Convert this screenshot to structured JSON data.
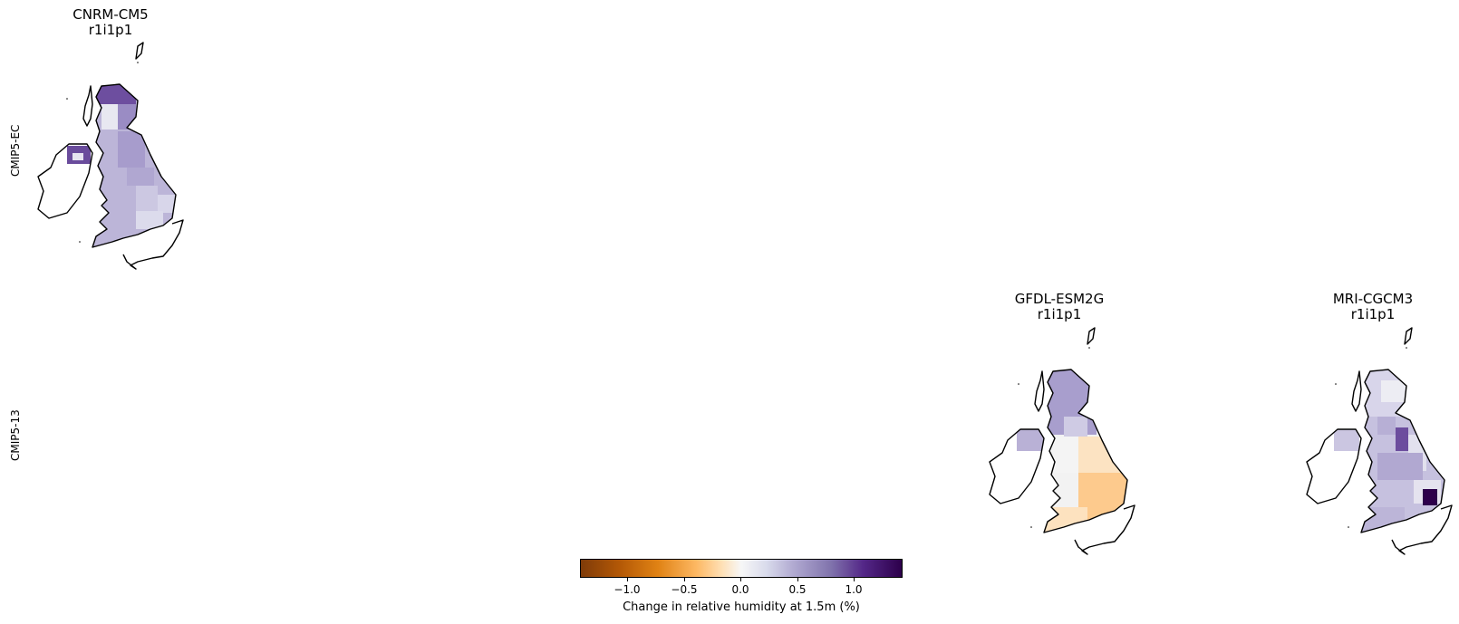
{
  "panels": [
    {
      "model": "CNRM-CM5",
      "run": "r1i1p1"
    },
    {
      "model": "GFDL-ESM2G",
      "run": "r1i1p1"
    },
    {
      "model": "MRI-CGCM3",
      "run": "r1i1p1"
    }
  ],
  "rows": [
    "CMIP5-EC",
    "CMIP5-13"
  ],
  "colorbar": {
    "label": "Change in relative humidity at 1.5m (%)",
    "ticks": [
      "−1.0",
      "−0.5",
      "0.0",
      "0.5",
      "1.0"
    ],
    "range": [
      -1.4,
      1.4
    ],
    "colors": {
      "low": "#7f3b08",
      "mid": "#f7f7f7",
      "high": "#2d004b"
    }
  }
}
